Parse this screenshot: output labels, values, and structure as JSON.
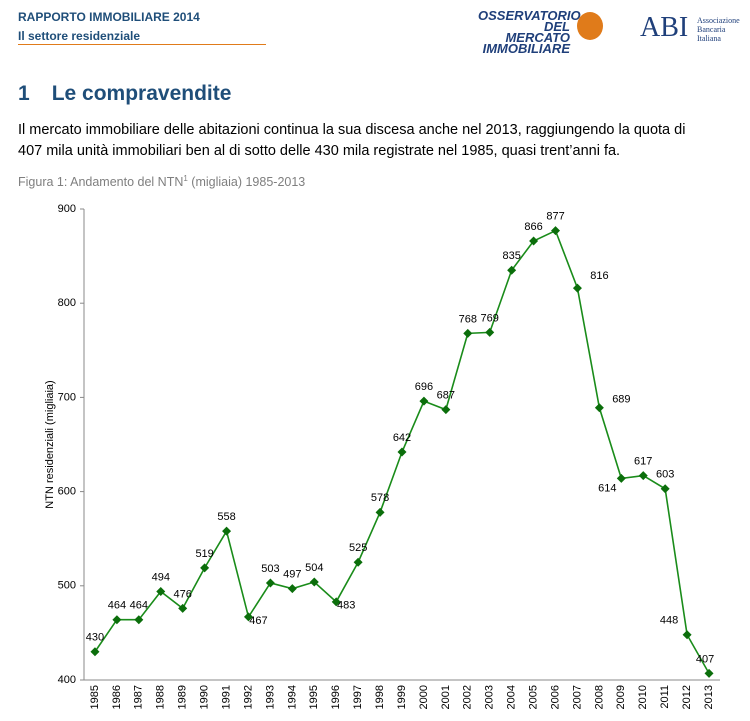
{
  "header": {
    "title": "RAPPORTO IMMOBILIARE 2014",
    "subtitle": "Il settore residenziale",
    "logo_omi": [
      "OSSERVATORIO",
      "DEL MERCATO",
      "IMMOBILIARE"
    ],
    "logo_abi": "ABI",
    "logo_abi_text": [
      "Associazione",
      "Bancaria",
      "Italiana"
    ]
  },
  "section": {
    "number": "1",
    "title": "Le compravendite"
  },
  "paragraph": [
    "Il mercato immobiliare delle abitazioni continua la sua discesa anche nel 2013, raggiungendo la quota di",
    "407 mila unità immobiliari ben al di sotto delle 430 mila registrate nel 1985, quasi trent’anni fa."
  ],
  "caption": {
    "text": "Figura 1: Andamento del NTN",
    "superscript": "1",
    "rest": " (migliaia) 1985-2013"
  },
  "chart_data": {
    "type": "line",
    "ylabel": "NTN residenziali (migliaia)",
    "color": "#1a8c1a",
    "marker_color": "#0b6e0b",
    "categories": [
      "1985",
      "1986",
      "1987",
      "1988",
      "1989",
      "1990",
      "1991",
      "1992",
      "1993",
      "1994",
      "1995",
      "1996",
      "1997",
      "1998",
      "1999",
      "2000",
      "2001",
      "2002",
      "2003",
      "2004",
      "2005",
      "2006",
      "2007",
      "2008",
      "2009",
      "2010",
      "2011",
      "2012",
      "2013"
    ],
    "values": [
      430,
      464,
      464,
      494,
      476,
      519,
      558,
      467,
      503,
      497,
      504,
      483,
      525,
      578,
      642,
      696,
      687,
      768,
      769,
      835,
      866,
      877,
      816,
      689,
      614,
      617,
      603,
      448,
      407
    ],
    "ylim": [
      400,
      900
    ],
    "yticks": [
      400,
      500,
      600,
      700,
      800,
      900
    ]
  }
}
